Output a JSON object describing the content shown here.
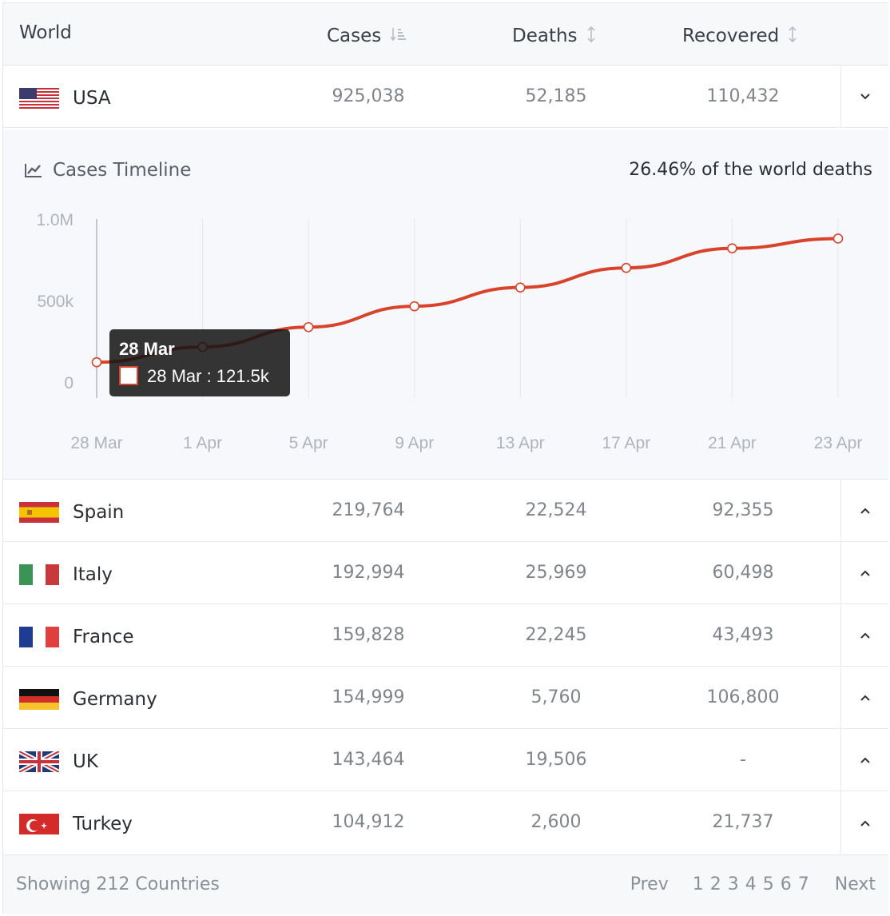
{
  "header": {
    "world": "World",
    "cases": "Cases",
    "deaths": "Deaths",
    "recovered": "Recovered"
  },
  "rows": [
    {
      "country": "USA",
      "cases": "925,038",
      "deaths": "52,185",
      "recovered": "110,432",
      "flag": "usa-flag",
      "toggle": "chevron-down-icon"
    },
    {
      "country": "Spain",
      "cases": "219,764",
      "deaths": "22,524",
      "recovered": "92,355",
      "flag": "spain-flag",
      "toggle": "chevron-up-icon"
    },
    {
      "country": "Italy",
      "cases": "192,994",
      "deaths": "25,969",
      "recovered": "60,498",
      "flag": "italy-flag",
      "toggle": "chevron-up-icon"
    },
    {
      "country": "France",
      "cases": "159,828",
      "deaths": "22,245",
      "recovered": "43,493",
      "flag": "france-flag",
      "toggle": "chevron-up-icon"
    },
    {
      "country": "Germany",
      "cases": "154,999",
      "deaths": "5,760",
      "recovered": "106,800",
      "flag": "germany-flag",
      "toggle": "chevron-up-icon"
    },
    {
      "country": "UK",
      "cases": "143,464",
      "deaths": "19,506",
      "recovered": "-",
      "flag": "uk-flag",
      "toggle": "chevron-up-icon"
    },
    {
      "country": "Turkey",
      "cases": "104,912",
      "deaths": "2,600",
      "recovered": "21,737",
      "flag": "turkey-flag",
      "toggle": "chevron-up-icon"
    }
  ],
  "expanded": {
    "title": "Cases Timeline",
    "share": "26.46% of the world deaths",
    "tooltip": {
      "title": "28 Mar",
      "text": "28 Mar : 121.5k"
    }
  },
  "chart_data": {
    "type": "line",
    "title": "Cases Timeline",
    "x": [
      "28 Mar",
      "1 Apr",
      "5 Apr",
      "9 Apr",
      "13 Apr",
      "17 Apr",
      "21 Apr",
      "23 Apr"
    ],
    "yticks": [
      "0",
      "500k",
      "1.0M"
    ],
    "ylim": [
      0,
      1000000
    ],
    "series": [
      {
        "values": [
          121500,
          215000,
          337000,
          465000,
          580000,
          700000,
          820000,
          880000
        ]
      }
    ],
    "line_color": "#d9432b",
    "grid": "vertical"
  },
  "footer": {
    "showing": "Showing 212 Countries",
    "prev": "Prev",
    "pages": [
      "1",
      "2",
      "3",
      "4",
      "5",
      "6",
      "7"
    ],
    "next": "Next"
  }
}
